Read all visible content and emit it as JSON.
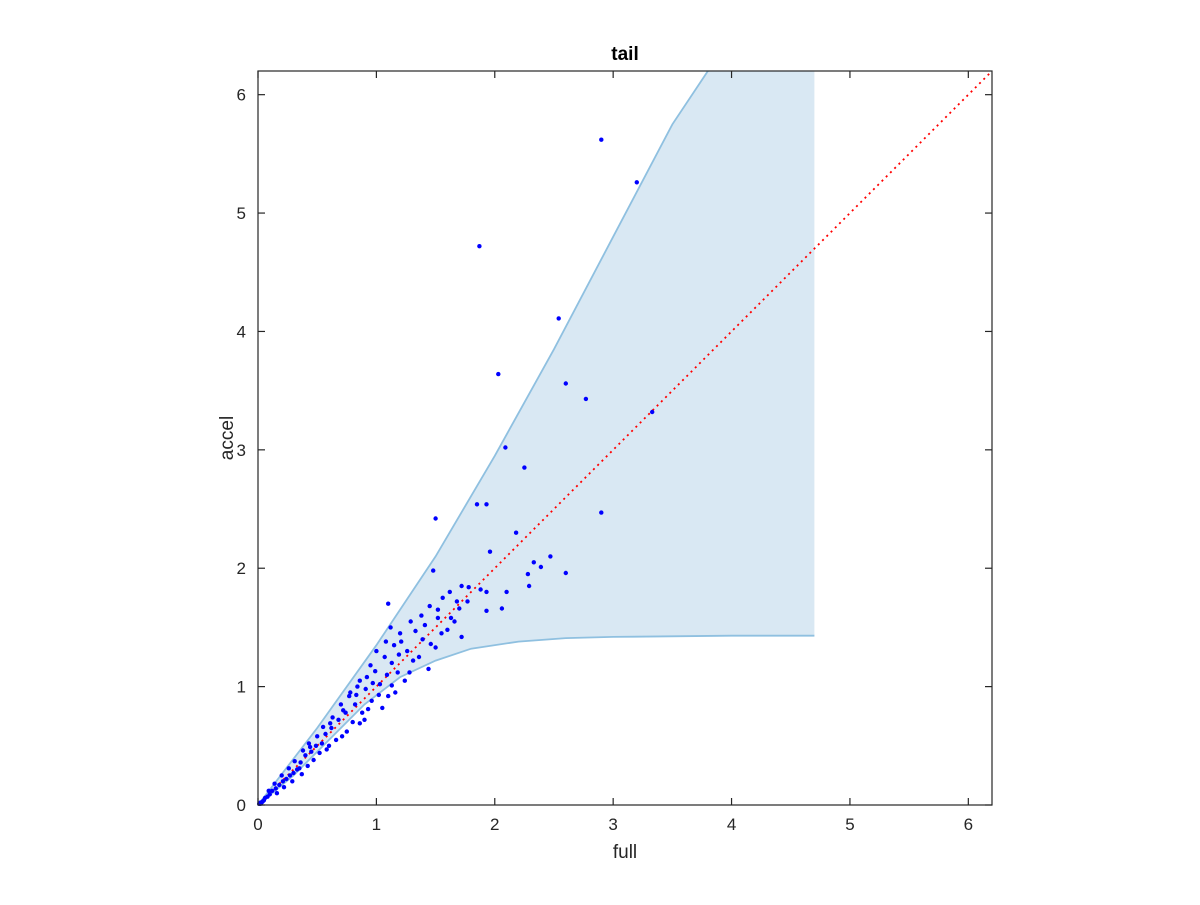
{
  "chart_data": {
    "type": "scatter",
    "title": "tail",
    "xlabel": "full",
    "ylabel": "accel",
    "xlim": [
      0,
      6.2
    ],
    "ylim": [
      0,
      6.2
    ],
    "xticks": [
      0,
      1,
      2,
      3,
      4,
      5,
      6
    ],
    "yticks": [
      0,
      1,
      2,
      3,
      4,
      5,
      6
    ],
    "grid": false,
    "colors": {
      "points": "#0000ff",
      "reference_line": "#ff0000",
      "band_fill": "#d9e8f3",
      "band_edge": "#8fc0e0",
      "axes": "#262626"
    },
    "reference_line": {
      "style": "dotted",
      "points": [
        [
          0,
          0
        ],
        [
          6.2,
          6.2
        ]
      ]
    },
    "band": {
      "upper": [
        [
          0,
          0
        ],
        [
          0.5,
          0.65
        ],
        [
          1.0,
          1.35
        ],
        [
          1.5,
          2.1
        ],
        [
          2.0,
          2.95
        ],
        [
          2.5,
          3.85
        ],
        [
          3.0,
          4.8
        ],
        [
          3.5,
          5.75
        ],
        [
          3.8,
          6.2
        ],
        [
          4.7,
          6.2
        ]
      ],
      "lower": [
        [
          0,
          0
        ],
        [
          0.3,
          0.25
        ],
        [
          0.6,
          0.55
        ],
        [
          0.9,
          0.85
        ],
        [
          1.2,
          1.08
        ],
        [
          1.5,
          1.22
        ],
        [
          1.8,
          1.32
        ],
        [
          2.2,
          1.38
        ],
        [
          2.6,
          1.41
        ],
        [
          3.0,
          1.42
        ],
        [
          4.0,
          1.43
        ],
        [
          4.7,
          1.43
        ]
      ]
    },
    "series": [
      {
        "points": [
          [
            2.9,
            5.62
          ],
          [
            3.2,
            5.26
          ],
          [
            1.87,
            4.72
          ],
          [
            2.54,
            4.11
          ],
          [
            2.03,
            3.64
          ],
          [
            2.6,
            3.56
          ],
          [
            2.77,
            3.43
          ],
          [
            3.33,
            3.32
          ],
          [
            2.09,
            3.02
          ],
          [
            2.25,
            2.85
          ],
          [
            1.85,
            2.54
          ],
          [
            1.93,
            2.54
          ],
          [
            2.9,
            2.47
          ],
          [
            1.5,
            2.42
          ],
          [
            2.18,
            2.3
          ],
          [
            1.96,
            2.14
          ],
          [
            2.47,
            2.1
          ],
          [
            2.33,
            2.05
          ],
          [
            2.39,
            2.01
          ],
          [
            2.6,
            1.96
          ],
          [
            2.28,
            1.95
          ],
          [
            2.29,
            1.85
          ],
          [
            1.72,
            1.85
          ],
          [
            1.78,
            1.84
          ],
          [
            1.48,
            1.98
          ],
          [
            1.88,
            1.82
          ],
          [
            1.62,
            1.8
          ],
          [
            2.1,
            1.8
          ],
          [
            1.93,
            1.8
          ],
          [
            1.56,
            1.75
          ],
          [
            1.68,
            1.72
          ],
          [
            1.1,
            1.7
          ],
          [
            1.45,
            1.68
          ],
          [
            2.06,
            1.66
          ],
          [
            1.93,
            1.64
          ],
          [
            1.52,
            1.65
          ],
          [
            1.38,
            1.6
          ],
          [
            1.29,
            1.55
          ],
          [
            1.66,
            1.55
          ],
          [
            1.12,
            1.5
          ],
          [
            1.6,
            1.48
          ],
          [
            1.2,
            1.45
          ],
          [
            1.39,
            1.4
          ],
          [
            1.72,
            1.42
          ],
          [
            1.08,
            1.38
          ],
          [
            1.26,
            1.3
          ],
          [
            1.5,
            1.33
          ],
          [
            1.0,
            1.3
          ],
          [
            0.95,
            1.18
          ],
          [
            1.13,
            1.2
          ],
          [
            1.31,
            1.22
          ],
          [
            1.18,
            1.12
          ],
          [
            1.44,
            1.15
          ],
          [
            0.86,
            1.05
          ],
          [
            1.03,
            1.02
          ],
          [
            1.24,
            1.05
          ],
          [
            0.91,
            0.98
          ],
          [
            0.78,
            0.95
          ],
          [
            1.1,
            0.92
          ],
          [
            0.82,
            0.85
          ],
          [
            0.96,
            0.88
          ],
          [
            1.16,
            0.95
          ],
          [
            0.72,
            0.8
          ],
          [
            0.88,
            0.78
          ],
          [
            1.05,
            0.82
          ],
          [
            0.68,
            0.72
          ],
          [
            0.8,
            0.7
          ],
          [
            0.62,
            0.65
          ],
          [
            0.75,
            0.62
          ],
          [
            0.9,
            0.72
          ],
          [
            0.57,
            0.6
          ],
          [
            0.66,
            0.55
          ],
          [
            0.54,
            0.52
          ],
          [
            0.6,
            0.5
          ],
          [
            0.49,
            0.5
          ],
          [
            0.52,
            0.44
          ],
          [
            0.45,
            0.45
          ],
          [
            0.4,
            0.42
          ],
          [
            0.47,
            0.38
          ],
          [
            0.36,
            0.36
          ],
          [
            0.42,
            0.33
          ],
          [
            0.33,
            0.3
          ],
          [
            0.3,
            0.27
          ],
          [
            0.37,
            0.26
          ],
          [
            0.27,
            0.25
          ],
          [
            0.24,
            0.22
          ],
          [
            0.29,
            0.2
          ],
          [
            0.21,
            0.2
          ],
          [
            0.18,
            0.17
          ],
          [
            0.22,
            0.15
          ],
          [
            0.15,
            0.14
          ],
          [
            0.12,
            0.12
          ],
          [
            0.16,
            0.1
          ],
          [
            0.1,
            0.09
          ],
          [
            0.08,
            0.07
          ],
          [
            0.06,
            0.06
          ],
          [
            0.05,
            0.04
          ],
          [
            0.04,
            0.03
          ],
          [
            0.03,
            0.02
          ],
          [
            0.02,
            0.02
          ],
          [
            0.02,
            0.01
          ],
          [
            0.01,
            0.01
          ],
          [
            0.09,
            0.12
          ],
          [
            0.14,
            0.18
          ],
          [
            0.2,
            0.25
          ],
          [
            0.26,
            0.31
          ],
          [
            0.31,
            0.37
          ],
          [
            0.38,
            0.46
          ],
          [
            0.43,
            0.52
          ],
          [
            0.5,
            0.58
          ],
          [
            0.55,
            0.66
          ],
          [
            0.63,
            0.74
          ],
          [
            0.7,
            0.85
          ],
          [
            0.77,
            0.92
          ],
          [
            0.84,
            1.0
          ],
          [
            0.92,
            1.08
          ],
          [
            0.99,
            1.13
          ],
          [
            1.07,
            1.25
          ],
          [
            1.15,
            1.35
          ],
          [
            1.21,
            1.38
          ],
          [
            0.35,
            0.31
          ],
          [
            0.58,
            0.47
          ],
          [
            0.71,
            0.58
          ],
          [
            0.86,
            0.69
          ],
          [
            0.93,
            0.81
          ],
          [
            1.02,
            0.93
          ],
          [
            1.13,
            1.01
          ],
          [
            1.28,
            1.12
          ],
          [
            1.36,
            1.25
          ],
          [
            1.46,
            1.36
          ],
          [
            1.55,
            1.45
          ],
          [
            1.63,
            1.58
          ],
          [
            1.7,
            1.66
          ],
          [
            1.77,
            1.72
          ],
          [
            0.44,
            0.49
          ],
          [
            0.61,
            0.69
          ],
          [
            0.74,
            0.78
          ],
          [
            0.83,
            0.93
          ],
          [
            0.97,
            1.03
          ],
          [
            1.09,
            1.1
          ],
          [
            1.19,
            1.27
          ],
          [
            1.33,
            1.47
          ],
          [
            1.41,
            1.52
          ],
          [
            1.52,
            1.58
          ]
        ]
      }
    ]
  }
}
